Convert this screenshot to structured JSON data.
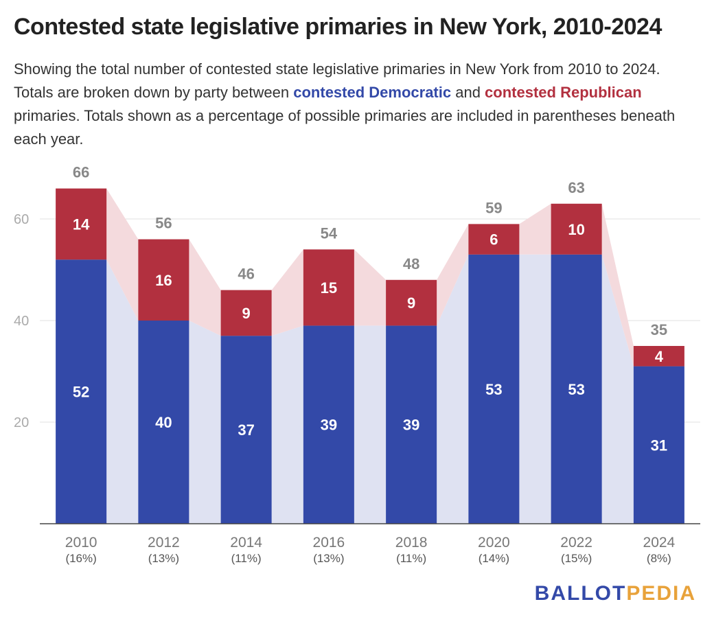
{
  "header": {
    "title": "Contested state legislative primaries in New York, 2010-2024",
    "subtitle_part1": "Showing the total number of contested state legislative primaries in New York from 2010 to 2024. Totals are broken down by party between ",
    "subtitle_dem": "contested Democratic",
    "subtitle_and": " and ",
    "subtitle_rep": "contested Republican",
    "subtitle_part2": " primaries. Totals shown as a percentage of possible primaries are included in parentheses beneath each year."
  },
  "logo": {
    "part1": "BALLOT",
    "part2": "PEDIA"
  },
  "colors": {
    "democratic": "#3349a8",
    "republican": "#b2303f",
    "democratic_area": "#dfe2f2",
    "republican_area": "#f4dadd",
    "total_label": "#888888",
    "axis": "#999999"
  },
  "chart_data": {
    "type": "bar",
    "stacked": true,
    "categories": [
      "2010",
      "2012",
      "2014",
      "2016",
      "2018",
      "2020",
      "2022",
      "2024"
    ],
    "category_sublabels": [
      "(16%)",
      "(13%)",
      "(11%)",
      "(13%)",
      "(11%)",
      "(14%)",
      "(15%)",
      "(8%)"
    ],
    "series": [
      {
        "name": "contested Democratic",
        "values": [
          52,
          40,
          37,
          39,
          39,
          53,
          53,
          31
        ]
      },
      {
        "name": "contested Republican",
        "values": [
          14,
          16,
          9,
          15,
          9,
          6,
          10,
          4
        ]
      }
    ],
    "totals": [
      66,
      56,
      46,
      54,
      48,
      59,
      63,
      35
    ],
    "yticks": [
      20,
      40,
      60
    ],
    "ylim": [
      0,
      66
    ],
    "grid": true,
    "legend": "inline in subtitle"
  }
}
